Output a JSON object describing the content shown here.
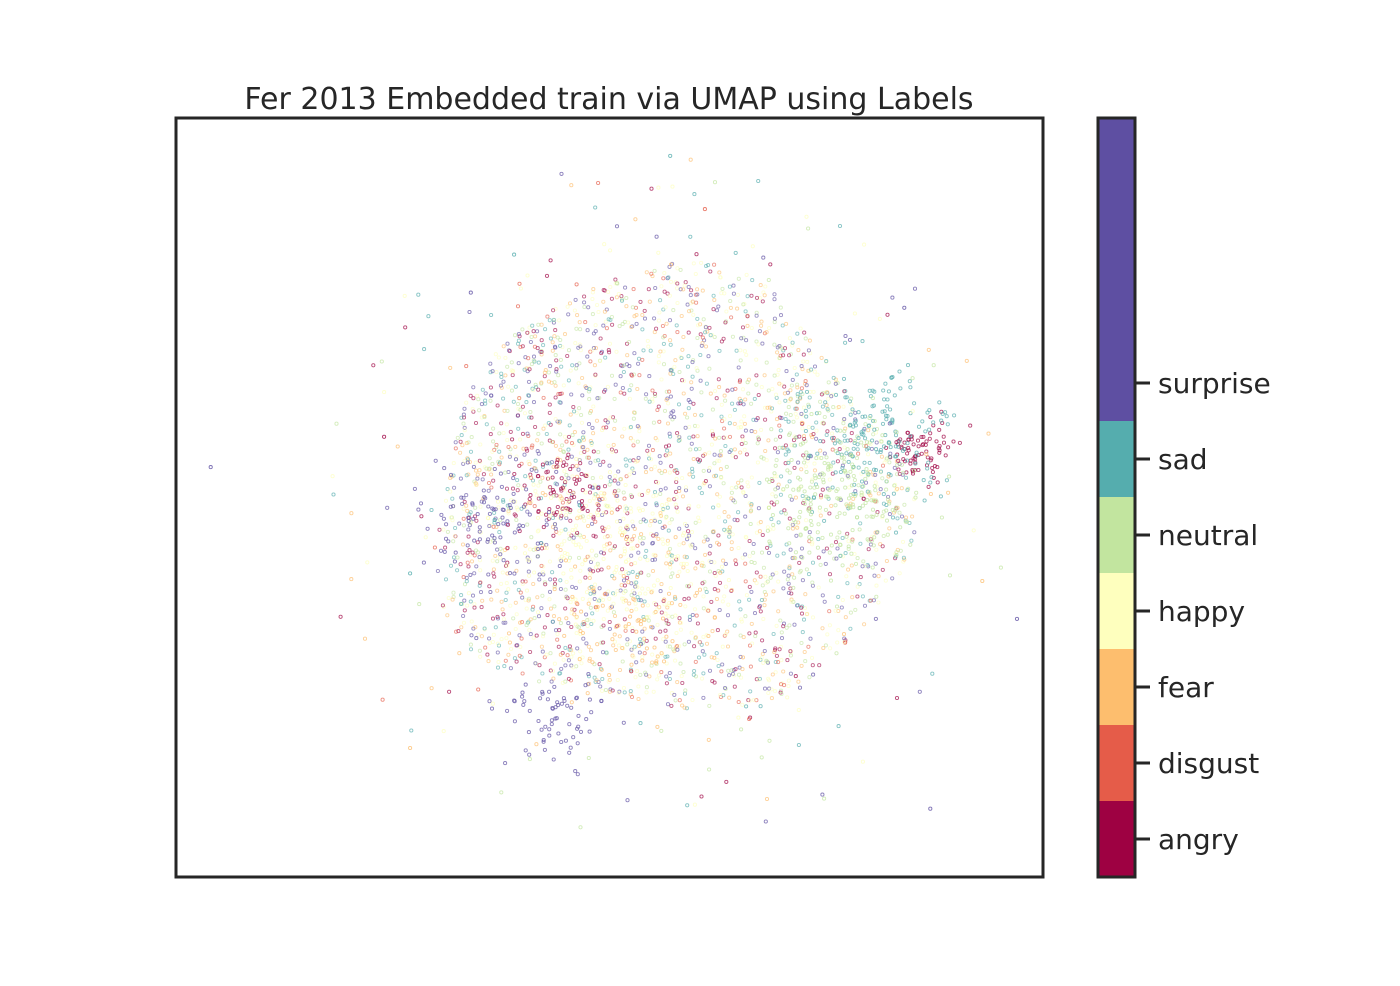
{
  "chart_data": {
    "type": "scatter",
    "title": "Fer 2013 Embedded train via UMAP using Labels",
    "xlabel": "",
    "ylabel": "",
    "x_ticks": [],
    "y_ticks": [],
    "grid": false,
    "legend": "colorbar-right",
    "colorbar": {
      "classes": [
        {
          "label": "angry",
          "color": "#9e0142"
        },
        {
          "label": "disgust",
          "color": "#e55c49"
        },
        {
          "label": "fear",
          "color": "#fdbe6e"
        },
        {
          "label": "happy",
          "color": "#feffbe"
        },
        {
          "label": "neutral",
          "color": "#c2e59f"
        },
        {
          "label": "sad",
          "color": "#55adae"
        },
        {
          "label": "surprise",
          "color": "#5e4fa2"
        }
      ],
      "extra_top_color": "#5e4fa2"
    },
    "clusters": [
      {
        "label": "angry",
        "center": [
          0.86,
          0.44
        ],
        "spread": 0.02,
        "count": 80
      },
      {
        "label": "angry",
        "center": [
          0.44,
          0.5
        ],
        "spread": 0.03,
        "count": 70
      },
      {
        "label": "sad",
        "center": [
          0.8,
          0.41
        ],
        "spread": 0.045,
        "count": 160
      },
      {
        "label": "neutral",
        "center": [
          0.76,
          0.5
        ],
        "spread": 0.05,
        "count": 220
      },
      {
        "label": "happy",
        "center": [
          0.5,
          0.55
        ],
        "spread": 0.06,
        "count": 200
      },
      {
        "label": "fear",
        "center": [
          0.52,
          0.66
        ],
        "spread": 0.05,
        "count": 90
      },
      {
        "label": "surprise",
        "center": [
          0.36,
          0.53
        ],
        "spread": 0.04,
        "count": 90
      },
      {
        "label": "surprise",
        "center": [
          0.44,
          0.79
        ],
        "spread": 0.03,
        "count": 70
      }
    ],
    "background_points": 2600,
    "outliers": [
      {
        "label": "sad",
        "x": 0.57,
        "y": 0.05
      },
      {
        "label": "disgust",
        "x": 0.61,
        "y": 0.12
      },
      {
        "label": "surprise",
        "x": 0.04,
        "y": 0.46
      },
      {
        "label": "surprise",
        "x": 0.97,
        "y": 0.66
      },
      {
        "label": "fear",
        "x": 0.27,
        "y": 0.83
      },
      {
        "label": "surprise",
        "x": 0.87,
        "y": 0.91
      },
      {
        "label": "surprise",
        "x": 0.34,
        "y": 0.23
      },
      {
        "label": "sad",
        "x": 0.39,
        "y": 0.18
      },
      {
        "label": "surprise",
        "x": 0.84,
        "y": 0.25
      },
      {
        "label": "angry",
        "x": 0.24,
        "y": 0.42
      },
      {
        "label": "sad",
        "x": 0.27,
        "y": 0.6
      },
      {
        "label": "fear",
        "x": 0.93,
        "y": 0.61
      }
    ]
  }
}
